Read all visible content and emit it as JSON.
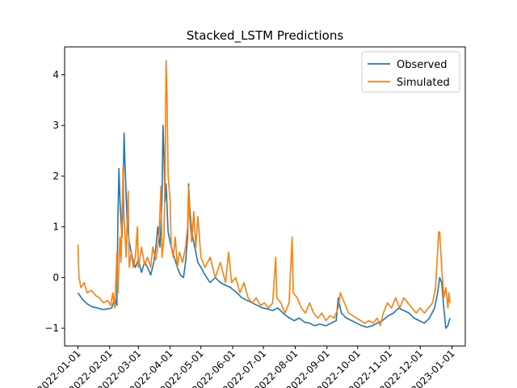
{
  "chart_data": {
    "type": "line",
    "title": "Stacked_LSTM Predictions",
    "xlabel": "",
    "ylabel": "",
    "x_tick_labels": [
      "2022-01-01",
      "2022-02-01",
      "2022-03-01",
      "2022-04-01",
      "2022-05-01",
      "2022-06-01",
      "2022-07-01",
      "2022-08-01",
      "2022-09-01",
      "2022-10-01",
      "2022-11-01",
      "2022-12-01",
      "2023-01-01"
    ],
    "y_ticks": [
      -1,
      0,
      1,
      2,
      3,
      4
    ],
    "xlim": [
      "2021-12-19",
      "2023-01-14"
    ],
    "ylim": [
      -1.35,
      4.55
    ],
    "legend": {
      "position": "top-right"
    },
    "series": [
      {
        "name": "Observed",
        "color": "#1f77b4",
        "points": [
          [
            "2022-01-01",
            -0.3
          ],
          [
            "2022-01-05",
            -0.42
          ],
          [
            "2022-01-10",
            -0.52
          ],
          [
            "2022-01-15",
            -0.58
          ],
          [
            "2022-01-20",
            -0.6
          ],
          [
            "2022-01-25",
            -0.63
          ],
          [
            "2022-01-30",
            -0.62
          ],
          [
            "2022-02-03",
            -0.6
          ],
          [
            "2022-02-06",
            -0.4
          ],
          [
            "2022-02-08",
            -0.55
          ],
          [
            "2022-02-09",
            1.2
          ],
          [
            "2022-02-10",
            2.15
          ],
          [
            "2022-02-11",
            1.5
          ],
          [
            "2022-02-13",
            0.8
          ],
          [
            "2022-02-14",
            1.5
          ],
          [
            "2022-02-15",
            2.85
          ],
          [
            "2022-02-16",
            2.2
          ],
          [
            "2022-02-18",
            1.1
          ],
          [
            "2022-02-20",
            0.7
          ],
          [
            "2022-02-23",
            0.4
          ],
          [
            "2022-02-26",
            0.2
          ],
          [
            "2022-03-01",
            0.35
          ],
          [
            "2022-03-04",
            0.1
          ],
          [
            "2022-03-07",
            0.3
          ],
          [
            "2022-03-10",
            0.2
          ],
          [
            "2022-03-13",
            0.05
          ],
          [
            "2022-03-16",
            0.3
          ],
          [
            "2022-03-18",
            0.6
          ],
          [
            "2022-03-20",
            1.0
          ],
          [
            "2022-03-22",
            0.6
          ],
          [
            "2022-03-24",
            1.5
          ],
          [
            "2022-03-25",
            3.0
          ],
          [
            "2022-03-26",
            2.4
          ],
          [
            "2022-03-27",
            1.5
          ],
          [
            "2022-03-28",
            1.85
          ],
          [
            "2022-03-30",
            0.9
          ],
          [
            "2022-04-02",
            0.6
          ],
          [
            "2022-04-05",
            0.4
          ],
          [
            "2022-04-08",
            0.2
          ],
          [
            "2022-04-11",
            0.05
          ],
          [
            "2022-04-14",
            0.0
          ],
          [
            "2022-04-16",
            0.3
          ],
          [
            "2022-04-18",
            0.8
          ],
          [
            "2022-04-19",
            1.85
          ],
          [
            "2022-04-20",
            1.4
          ],
          [
            "2022-04-22",
            0.9
          ],
          [
            "2022-04-25",
            0.6
          ],
          [
            "2022-04-28",
            0.3
          ],
          [
            "2022-05-01",
            0.2
          ],
          [
            "2022-05-05",
            0.05
          ],
          [
            "2022-05-10",
            -0.1
          ],
          [
            "2022-05-15",
            0.0
          ],
          [
            "2022-05-20",
            -0.1
          ],
          [
            "2022-05-25",
            -0.15
          ],
          [
            "2022-05-30",
            -0.2
          ],
          [
            "2022-06-05",
            -0.3
          ],
          [
            "2022-06-10",
            -0.4
          ],
          [
            "2022-06-15",
            -0.45
          ],
          [
            "2022-06-20",
            -0.5
          ],
          [
            "2022-06-25",
            -0.55
          ],
          [
            "2022-06-30",
            -0.6
          ],
          [
            "2022-07-05",
            -0.62
          ],
          [
            "2022-07-10",
            -0.65
          ],
          [
            "2022-07-15",
            -0.6
          ],
          [
            "2022-07-20",
            -0.7
          ],
          [
            "2022-07-25",
            -0.78
          ],
          [
            "2022-07-31",
            -0.85
          ],
          [
            "2022-08-05",
            -0.8
          ],
          [
            "2022-08-10",
            -0.88
          ],
          [
            "2022-08-15",
            -0.9
          ],
          [
            "2022-08-20",
            -0.95
          ],
          [
            "2022-08-25",
            -0.92
          ],
          [
            "2022-08-31",
            -0.95
          ],
          [
            "2022-09-05",
            -0.9
          ],
          [
            "2022-09-10",
            -0.85
          ],
          [
            "2022-09-12",
            -0.4
          ],
          [
            "2022-09-15",
            -0.7
          ],
          [
            "2022-09-20",
            -0.8
          ],
          [
            "2022-09-25",
            -0.85
          ],
          [
            "2022-09-30",
            -0.9
          ],
          [
            "2022-10-05",
            -0.95
          ],
          [
            "2022-10-10",
            -0.98
          ],
          [
            "2022-10-15",
            -0.95
          ],
          [
            "2022-10-20",
            -0.9
          ],
          [
            "2022-10-25",
            -0.85
          ],
          [
            "2022-10-31",
            -0.75
          ],
          [
            "2022-11-05",
            -0.7
          ],
          [
            "2022-11-10",
            -0.6
          ],
          [
            "2022-11-15",
            -0.65
          ],
          [
            "2022-11-20",
            -0.7
          ],
          [
            "2022-11-25",
            -0.8
          ],
          [
            "2022-11-30",
            -0.85
          ],
          [
            "2022-12-05",
            -0.9
          ],
          [
            "2022-12-10",
            -0.8
          ],
          [
            "2022-12-15",
            -0.6
          ],
          [
            "2022-12-18",
            -0.3
          ],
          [
            "2022-12-20",
            0.0
          ],
          [
            "2022-12-22",
            -0.1
          ],
          [
            "2022-12-24",
            -0.6
          ],
          [
            "2022-12-26",
            -1.0
          ],
          [
            "2022-12-28",
            -0.95
          ],
          [
            "2022-12-30",
            -0.8
          ]
        ]
      },
      {
        "name": "Simulated",
        "color": "#ff7f0e",
        "points": [
          [
            "2022-01-01",
            0.65
          ],
          [
            "2022-01-02",
            0.0
          ],
          [
            "2022-01-04",
            -0.2
          ],
          [
            "2022-01-07",
            -0.1
          ],
          [
            "2022-01-10",
            -0.3
          ],
          [
            "2022-01-14",
            -0.25
          ],
          [
            "2022-01-18",
            -0.35
          ],
          [
            "2022-01-22",
            -0.4
          ],
          [
            "2022-01-26",
            -0.5
          ],
          [
            "2022-01-30",
            -0.45
          ],
          [
            "2022-02-02",
            -0.55
          ],
          [
            "2022-02-04",
            -0.3
          ],
          [
            "2022-02-06",
            -0.6
          ],
          [
            "2022-02-08",
            0.5
          ],
          [
            "2022-02-09",
            -0.3
          ],
          [
            "2022-02-11",
            0.8
          ],
          [
            "2022-02-12",
            0.3
          ],
          [
            "2022-02-14",
            2.2
          ],
          [
            "2022-02-15",
            1.2
          ],
          [
            "2022-02-17",
            0.4
          ],
          [
            "2022-02-19",
            1.7
          ],
          [
            "2022-02-20",
            0.2
          ],
          [
            "2022-02-22",
            0.5
          ],
          [
            "2022-02-24",
            0.2
          ],
          [
            "2022-02-26",
            0.4
          ],
          [
            "2022-02-28",
            1.0
          ],
          [
            "2022-03-01",
            0.2
          ],
          [
            "2022-03-04",
            0.6
          ],
          [
            "2022-03-07",
            0.25
          ],
          [
            "2022-03-10",
            0.4
          ],
          [
            "2022-03-13",
            0.2
          ],
          [
            "2022-03-15",
            0.6
          ],
          [
            "2022-03-18",
            0.35
          ],
          [
            "2022-03-21",
            0.8
          ],
          [
            "2022-03-23",
            1.8
          ],
          [
            "2022-03-24",
            0.4
          ],
          [
            "2022-03-26",
            0.8
          ],
          [
            "2022-03-27",
            2.0
          ],
          [
            "2022-03-28",
            4.28
          ],
          [
            "2022-03-29",
            3.5
          ],
          [
            "2022-03-30",
            2.0
          ],
          [
            "2022-04-01",
            1.5
          ],
          [
            "2022-04-02",
            0.6
          ],
          [
            "2022-04-04",
            0.4
          ],
          [
            "2022-04-06",
            0.8
          ],
          [
            "2022-04-08",
            0.2
          ],
          [
            "2022-04-10",
            0.5
          ],
          [
            "2022-04-13",
            0.3
          ],
          [
            "2022-04-16",
            0.6
          ],
          [
            "2022-04-18",
            1.0
          ],
          [
            "2022-04-19",
            1.8
          ],
          [
            "2022-04-20",
            1.2
          ],
          [
            "2022-04-22",
            0.7
          ],
          [
            "2022-04-24",
            1.3
          ],
          [
            "2022-04-26",
            0.6
          ],
          [
            "2022-04-28",
            1.2
          ],
          [
            "2022-05-01",
            0.4
          ],
          [
            "2022-05-05",
            0.2
          ],
          [
            "2022-05-10",
            0.4
          ],
          [
            "2022-05-15",
            0.0
          ],
          [
            "2022-05-20",
            0.3
          ],
          [
            "2022-05-25",
            -0.1
          ],
          [
            "2022-05-28",
            0.5
          ],
          [
            "2022-05-31",
            -0.1
          ],
          [
            "2022-06-04",
            0.0
          ],
          [
            "2022-06-08",
            -0.3
          ],
          [
            "2022-06-12",
            -0.1
          ],
          [
            "2022-06-16",
            -0.4
          ],
          [
            "2022-06-20",
            -0.5
          ],
          [
            "2022-06-24",
            -0.4
          ],
          [
            "2022-06-28",
            -0.55
          ],
          [
            "2022-07-02",
            -0.5
          ],
          [
            "2022-07-06",
            -0.6
          ],
          [
            "2022-07-10",
            -0.5
          ],
          [
            "2022-07-13",
            0.4
          ],
          [
            "2022-07-14",
            -0.4
          ],
          [
            "2022-07-18",
            -0.5
          ],
          [
            "2022-07-22",
            -0.7
          ],
          [
            "2022-07-26",
            -0.5
          ],
          [
            "2022-07-29",
            0.8
          ],
          [
            "2022-07-30",
            -0.3
          ],
          [
            "2022-08-03",
            -0.4
          ],
          [
            "2022-08-07",
            -0.6
          ],
          [
            "2022-08-11",
            -0.7
          ],
          [
            "2022-08-15",
            -0.5
          ],
          [
            "2022-08-19",
            -0.7
          ],
          [
            "2022-08-23",
            -0.8
          ],
          [
            "2022-08-27",
            -0.7
          ],
          [
            "2022-08-31",
            -0.85
          ],
          [
            "2022-09-04",
            -0.75
          ],
          [
            "2022-09-08",
            -0.8
          ],
          [
            "2022-09-12",
            -0.6
          ],
          [
            "2022-09-14",
            -0.3
          ],
          [
            "2022-09-18",
            -0.5
          ],
          [
            "2022-09-22",
            -0.7
          ],
          [
            "2022-09-26",
            -0.75
          ],
          [
            "2022-09-30",
            -0.8
          ],
          [
            "2022-10-04",
            -0.85
          ],
          [
            "2022-10-08",
            -0.9
          ],
          [
            "2022-10-12",
            -0.85
          ],
          [
            "2022-10-16",
            -0.9
          ],
          [
            "2022-10-20",
            -0.8
          ],
          [
            "2022-10-23",
            -0.95
          ],
          [
            "2022-10-26",
            -0.7
          ],
          [
            "2022-10-30",
            -0.5
          ],
          [
            "2022-11-03",
            -0.6
          ],
          [
            "2022-11-07",
            -0.4
          ],
          [
            "2022-11-11",
            -0.6
          ],
          [
            "2022-11-15",
            -0.4
          ],
          [
            "2022-11-19",
            -0.5
          ],
          [
            "2022-11-23",
            -0.6
          ],
          [
            "2022-11-27",
            -0.7
          ],
          [
            "2022-12-01",
            -0.6
          ],
          [
            "2022-12-05",
            -0.7
          ],
          [
            "2022-12-09",
            -0.6
          ],
          [
            "2022-12-13",
            -0.5
          ],
          [
            "2022-12-16",
            -0.2
          ],
          [
            "2022-12-19",
            0.9
          ],
          [
            "2022-12-20",
            0.9
          ],
          [
            "2022-12-22",
            0.2
          ],
          [
            "2022-12-24",
            -0.4
          ],
          [
            "2022-12-26",
            -0.2
          ],
          [
            "2022-12-28",
            -0.6
          ],
          [
            "2022-12-29",
            -0.3
          ],
          [
            "2022-12-30",
            -0.5
          ]
        ]
      }
    ]
  }
}
